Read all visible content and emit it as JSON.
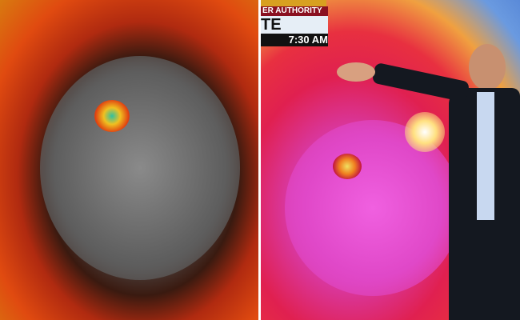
{
  "ticker": {
    "line1": "ER AUTHORITY",
    "line2": "TE",
    "time": "7:30 AM"
  },
  "colors": {
    "storm_red": "#e02050",
    "storm_magenta": "#d83aa8",
    "eye": "#f0c020"
  }
}
